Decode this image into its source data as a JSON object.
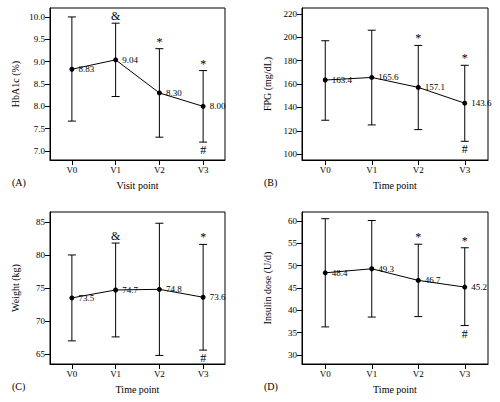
{
  "chart_data": [
    {
      "type": "line",
      "panel_label": "(A)",
      "x_label": "Visit point",
      "y_label": "HbA1c (%)",
      "categories": [
        "V0",
        "V1",
        "V2",
        "V3"
      ],
      "values": [
        8.83,
        9.04,
        8.3,
        8.0
      ],
      "value_labels": [
        "8.83",
        "9.04",
        "8.30",
        "8.00"
      ],
      "lower": [
        7.67,
        8.22,
        7.31,
        7.2
      ],
      "upper": [
        10.0,
        9.86,
        9.29,
        8.8
      ],
      "ylim": [
        6.8,
        10.2
      ],
      "yticks": [
        {
          "value": 7,
          "label": "7.0"
        },
        7.5,
        {
          "value": 8,
          "label": "8.0"
        },
        8.5,
        {
          "value": 9,
          "label": "9.0"
        },
        9.5,
        {
          "value": 10,
          "label": "10.0"
        }
      ],
      "color": "#000000",
      "marker": "circle",
      "data_labels": true,
      "grid": false,
      "annotations": [
        {
          "category": "V1",
          "text": "&",
          "position": "above"
        },
        {
          "category": "V2",
          "text": "*",
          "position": "above"
        },
        {
          "category": "V3",
          "text": "*",
          "position": "above"
        },
        {
          "category": "V3",
          "text": "#",
          "position": "below"
        }
      ]
    },
    {
      "type": "line",
      "panel_label": "(B)",
      "x_label": "Time point",
      "y_label": "FPG (mg/dL)",
      "categories": [
        "V0",
        "V1",
        "V2",
        "V3"
      ],
      "values": [
        163.4,
        165.6,
        157.1,
        143.6
      ],
      "value_labels": [
        "163.4",
        "165.6",
        "157.1",
        "143.6"
      ],
      "lower": [
        129,
        125,
        121,
        111
      ],
      "upper": [
        197,
        206,
        193,
        176
      ],
      "ylim": [
        95,
        225
      ],
      "yticks": [
        100,
        120,
        140,
        160,
        180,
        200,
        220
      ],
      "color": "#000000",
      "marker": "circle",
      "data_labels": true,
      "grid": false,
      "annotations": [
        {
          "category": "V2",
          "text": "*",
          "position": "above"
        },
        {
          "category": "V3",
          "text": "*",
          "position": "above"
        },
        {
          "category": "V3",
          "text": "#",
          "position": "below"
        }
      ]
    },
    {
      "type": "line",
      "panel_label": "(C)",
      "x_label": "Time point",
      "y_label": "Weight (kg)",
      "categories": [
        "V0",
        "V1",
        "V2",
        "V3"
      ],
      "values": [
        73.5,
        74.7,
        74.8,
        73.6
      ],
      "value_labels": [
        "73.5",
        "74.7",
        "74.8",
        "73.6"
      ],
      "lower": [
        67,
        67.6,
        64.8,
        65.6
      ],
      "upper": [
        80,
        81.8,
        84.8,
        81.6
      ],
      "ylim": [
        63.5,
        86.5
      ],
      "yticks": [
        65,
        70,
        75,
        80,
        85
      ],
      "color": "#000000",
      "marker": "circle",
      "data_labels": true,
      "grid": false,
      "annotations": [
        {
          "category": "V1",
          "text": "&",
          "position": "above"
        },
        {
          "category": "V3",
          "text": "*",
          "position": "above"
        },
        {
          "category": "V3",
          "text": "#",
          "position": "below"
        }
      ]
    },
    {
      "type": "line",
      "panel_label": "(D)",
      "x_label": "Time point",
      "y_label": "Insulin dose (U/d)",
      "categories": [
        "V0",
        "V1",
        "V2",
        "V3"
      ],
      "values": [
        48.4,
        49.3,
        46.7,
        45.2
      ],
      "value_labels": [
        "48.4",
        "49.3",
        "46.7",
        "45.2"
      ],
      "lower": [
        36.3,
        38.5,
        38.6,
        36.6
      ],
      "upper": [
        60.5,
        60.1,
        54.8,
        54
      ],
      "ylim": [
        28,
        62
      ],
      "yticks": [
        30,
        35,
        40,
        45,
        50,
        55,
        60
      ],
      "color": "#000000",
      "marker": "circle",
      "data_labels": true,
      "grid": false,
      "annotations": [
        {
          "category": "V2",
          "text": "*",
          "position": "above"
        },
        {
          "category": "V3",
          "text": "*",
          "position": "above"
        },
        {
          "category": "V3",
          "text": "#",
          "position": "below"
        }
      ]
    }
  ]
}
